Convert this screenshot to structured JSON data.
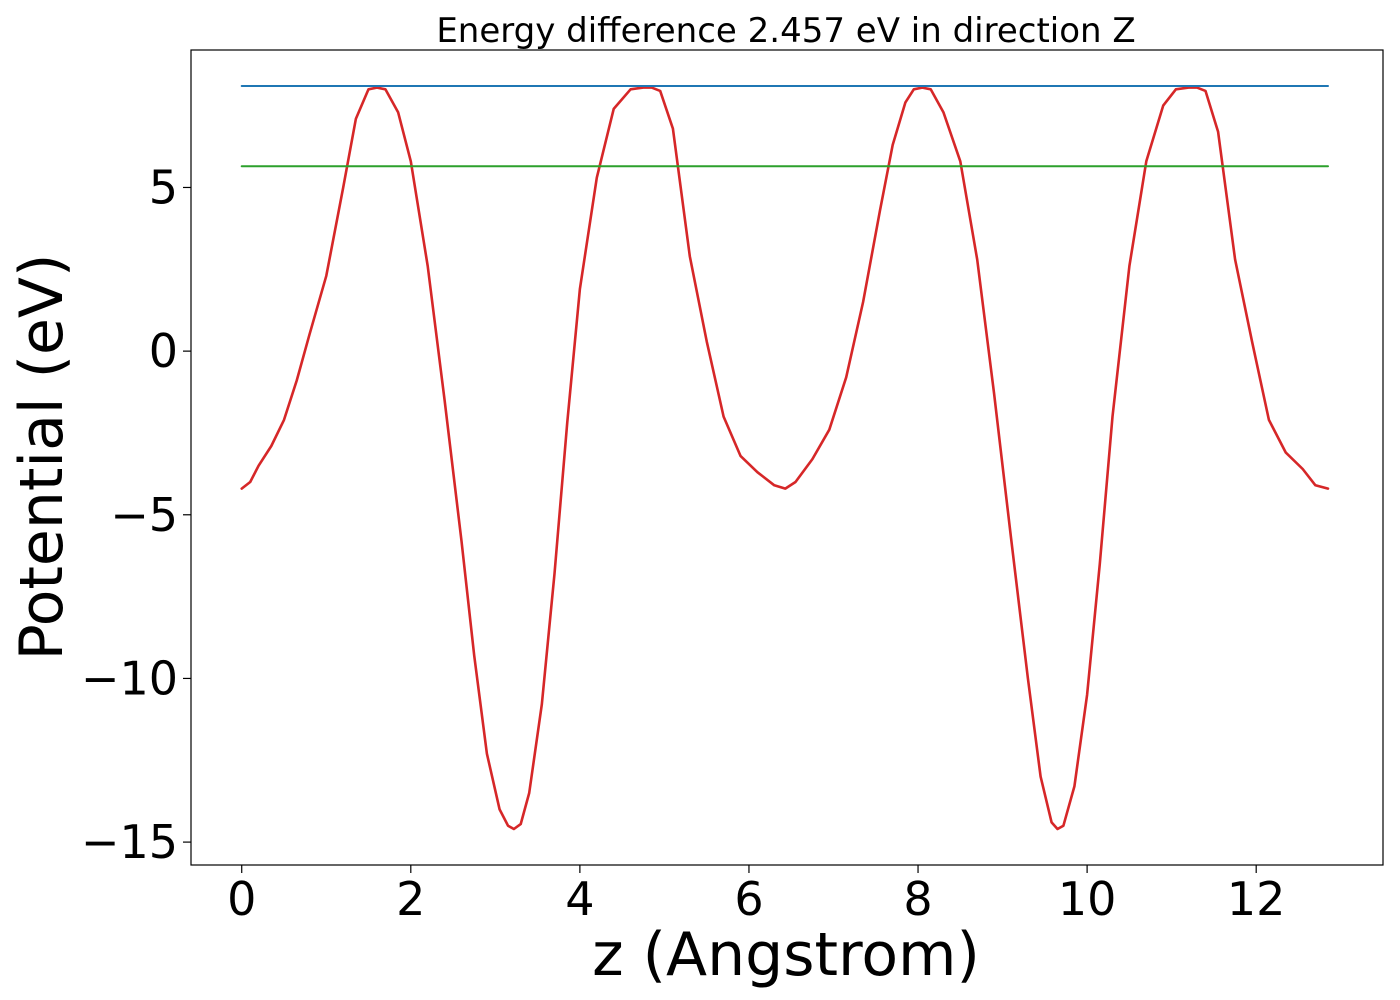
{
  "chart_data": {
    "type": "line",
    "title": "Energy difference 2.457 eV in direction Z",
    "xlabel": "z (Angstrom)",
    "ylabel": "Potential (eV)",
    "xlim": [
      -0.6,
      13.5
    ],
    "ylim": [
      -15.7,
      9.2
    ],
    "xticks": [
      0,
      2,
      4,
      6,
      8,
      10,
      12
    ],
    "xtick_labels": [
      "0",
      "2",
      "4",
      "6",
      "8",
      "10",
      "12"
    ],
    "yticks": [
      5,
      0,
      -5,
      -10,
      -15
    ],
    "ytick_labels": [
      "5",
      "0",
      "−5",
      "−10",
      "−15"
    ],
    "grid": false,
    "series": [
      {
        "color": "#d62728",
        "x": [
          0.0,
          0.1,
          0.2,
          0.35,
          0.5,
          0.65,
          0.8,
          1.0,
          1.2,
          1.35,
          1.5,
          1.6,
          1.7,
          1.85,
          2.0,
          2.2,
          2.4,
          2.6,
          2.75,
          2.9,
          3.05,
          3.15,
          3.22,
          3.3,
          3.4,
          3.55,
          3.7,
          3.85,
          4.0,
          4.2,
          4.4,
          4.6,
          4.75,
          4.85,
          4.95,
          5.1,
          5.3,
          5.5,
          5.7,
          5.9,
          6.1,
          6.3,
          6.43,
          6.55,
          6.75,
          6.95,
          7.15,
          7.35,
          7.55,
          7.7,
          7.85,
          7.95,
          8.05,
          8.15,
          8.3,
          8.5,
          8.7,
          8.9,
          9.1,
          9.3,
          9.45,
          9.58,
          9.65,
          9.72,
          9.85,
          10.0,
          10.15,
          10.3,
          10.5,
          10.7,
          10.9,
          11.05,
          11.2,
          11.3,
          11.4,
          11.55,
          11.75,
          11.95,
          12.15,
          12.35,
          12.55,
          12.7,
          12.85
        ],
        "y": [
          -4.2,
          -4.0,
          -3.5,
          -2.9,
          -2.1,
          -0.9,
          0.5,
          2.3,
          5.0,
          7.1,
          8.0,
          8.05,
          8.0,
          7.3,
          5.8,
          2.6,
          -1.5,
          -5.8,
          -9.3,
          -12.3,
          -14.0,
          -14.5,
          -14.6,
          -14.45,
          -13.5,
          -10.8,
          -6.8,
          -2.2,
          1.9,
          5.3,
          7.4,
          8.0,
          8.05,
          8.05,
          7.95,
          6.8,
          2.9,
          0.3,
          -2.0,
          -3.2,
          -3.7,
          -4.1,
          -4.2,
          -4.0,
          -3.3,
          -2.4,
          -0.8,
          1.5,
          4.3,
          6.3,
          7.6,
          8.0,
          8.05,
          8.0,
          7.3,
          5.8,
          2.8,
          -1.3,
          -5.7,
          -10.0,
          -13.0,
          -14.4,
          -14.6,
          -14.5,
          -13.3,
          -10.5,
          -6.5,
          -2.0,
          2.6,
          5.8,
          7.5,
          8.0,
          8.05,
          8.05,
          7.95,
          6.7,
          2.8,
          0.3,
          -2.1,
          -3.1,
          -3.6,
          -4.1,
          -4.2
        ]
      },
      {
        "color": "#1f77b4",
        "x": [
          0.0,
          12.85
        ],
        "y": [
          8.1,
          8.1
        ]
      },
      {
        "color": "#2ca02c",
        "x": [
          0.0,
          12.85
        ],
        "y": [
          5.65,
          5.65
        ]
      }
    ]
  }
}
